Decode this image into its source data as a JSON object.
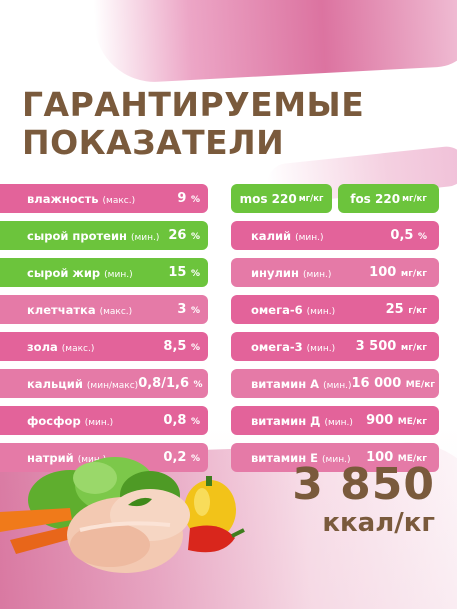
{
  "title": [
    "ГАРАНТИРУЕМЫЕ",
    "ПОКАЗАТЕЛИ"
  ],
  "left_rows": [
    {
      "label": "влажность",
      "qual": "(макс.)",
      "value": "9",
      "unit": "%",
      "color": "pink"
    },
    {
      "label": "сырой протеин",
      "qual": "(мин.)",
      "value": "26",
      "unit": "%",
      "color": "green"
    },
    {
      "label": "сырой жир",
      "qual": "(мин.)",
      "value": "15",
      "unit": "%",
      "color": "green"
    },
    {
      "label": "клетчатка",
      "qual": "(макс.)",
      "value": "3",
      "unit": "%",
      "color": "lpink"
    },
    {
      "label": "зола",
      "qual": "(макс.)",
      "value": "8,5",
      "unit": "%",
      "color": "pink"
    },
    {
      "label": "кальций",
      "qual": "(мин/макс)",
      "value": "0,8/1,6",
      "unit": "%",
      "color": "lpink"
    },
    {
      "label": "фосфор",
      "qual": "(мин.)",
      "value": "0,8",
      "unit": "%",
      "color": "pink"
    },
    {
      "label": "натрий",
      "qual": "(мин.)",
      "value": "0,2",
      "unit": "%",
      "color": "lpink"
    }
  ],
  "right_top": [
    {
      "label": "mos 220",
      "unit": "мг/кг"
    },
    {
      "label": "fos 220",
      "unit": "мг/кг"
    }
  ],
  "right_rows": [
    {
      "label": "калий",
      "qual": "(мин.)",
      "value": "0,5",
      "unit": "%",
      "color": "pink"
    },
    {
      "label": "инулин",
      "qual": "(мин.)",
      "value": "100",
      "unit": "мг/кг",
      "color": "lpink"
    },
    {
      "label": "омега-6",
      "qual": "(мин.)",
      "value": "25",
      "unit": "г/кг",
      "color": "pink"
    },
    {
      "label": "омега-3",
      "qual": "(мин.)",
      "value": "3 500",
      "unit": "мг/кг",
      "color": "pink"
    },
    {
      "label": "витамин А",
      "qual": "(мин.)",
      "value": "16 000",
      "unit": "МЕ/кг",
      "color": "lpink"
    },
    {
      "label": "витамин Д",
      "qual": "(мин.)",
      "value": "900",
      "unit": "МЕ/кг",
      "color": "pink"
    },
    {
      "label": "витамин Е",
      "qual": "(мин.)",
      "value": "100",
      "unit": "МЕ/кг",
      "color": "lpink"
    }
  ],
  "energy": {
    "value": "3 850",
    "unit": "ккал/кг"
  },
  "colors": {
    "pink": "#e3639a",
    "lpink": "#e57aa7",
    "green": "#6cc43c",
    "brown": "#7a5a3c"
  }
}
